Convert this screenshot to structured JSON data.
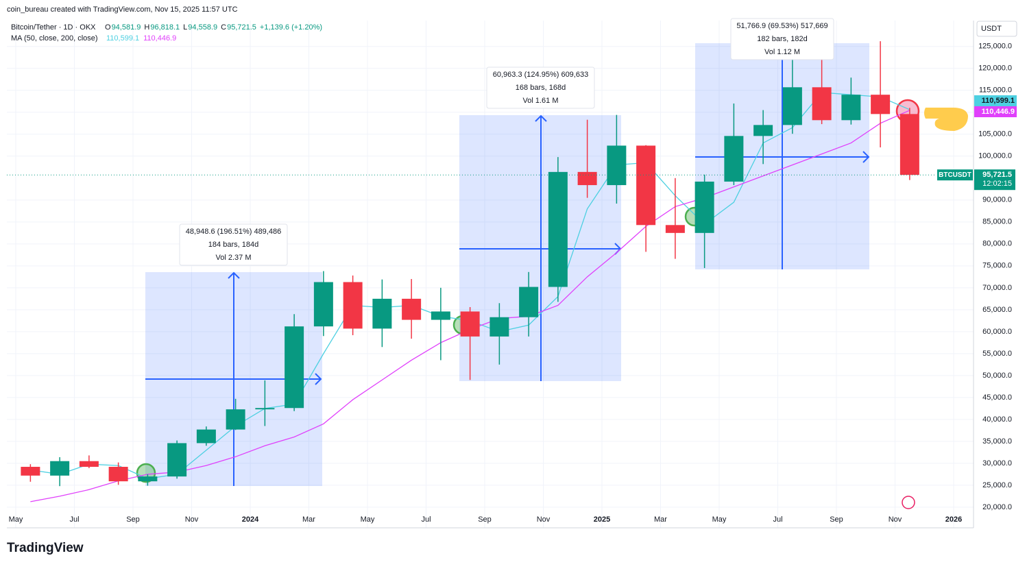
{
  "header": {
    "credit": "coin_bureau created with TradingView.com, Nov 15, 2025 11:57 UTC",
    "symbol": "Bitcoin/Tether · 1D · OKX",
    "ohlc": [
      {
        "key": "O",
        "value": "94,581.9"
      },
      {
        "key": "H",
        "value": "96,818.1"
      },
      {
        "key": "L",
        "value": "94,558.9"
      },
      {
        "key": "C",
        "value": "95,721.5"
      }
    ],
    "change": "+1,139.6 (+1.20%)",
    "ma_title": "MA (50, close, 200, close)"
  },
  "chart_data": {
    "type": "candlestick",
    "categories": [
      "May",
      null,
      "Jul",
      null,
      "Sep",
      null,
      "Nov",
      null,
      "2024",
      null,
      "Mar",
      null,
      "May",
      null,
      "Jul",
      null,
      "Sep",
      null,
      "Nov",
      null,
      "2025",
      null,
      "Mar",
      null,
      "May",
      null,
      "Jul",
      null,
      "Sep",
      null,
      "Nov",
      null,
      "2026"
    ],
    "open": [
      29200,
      27200,
      30500,
      29200,
      25900,
      27000,
      34600,
      37700,
      42300,
      42600,
      61200,
      71300,
      60700,
      67500,
      62700,
      64600,
      58900,
      63300,
      70200,
      96400,
      93400,
      102400,
      84300,
      82500,
      94200,
      104600,
      107100,
      115700,
      108200,
      114000,
      109600,
      null,
      null
    ],
    "high": [
      29800,
      31400,
      31800,
      30200,
      27500,
      35200,
      38400,
      44700,
      48900,
      64000,
      73800,
      72800,
      71900,
      72000,
      70000,
      65600,
      66500,
      73600,
      99800,
      108300,
      109400,
      102500,
      95000,
      95800,
      112000,
      110500,
      123200,
      124500,
      117900,
      126200,
      111000,
      null,
      null
    ],
    "low": [
      25800,
      24800,
      28900,
      25100,
      24900,
      26500,
      34000,
      37600,
      38500,
      41900,
      59000,
      59200,
      56500,
      58400,
      53500,
      49000,
      52500,
      58900,
      66800,
      90500,
      89200,
      78200,
      76600,
      74500,
      93400,
      98200,
      105100,
      107300,
      107200,
      102000,
      94558,
      null,
      null
    ],
    "close": [
      27200,
      30500,
      29200,
      25900,
      27000,
      34600,
      37700,
      42300,
      42600,
      61200,
      71300,
      60700,
      67500,
      62700,
      64600,
      58900,
      63300,
      70200,
      96400,
      93400,
      102400,
      84300,
      82500,
      94200,
      104600,
      107100,
      115700,
      108200,
      114000,
      109600,
      95721.5,
      null,
      null
    ],
    "up_color": "#089981",
    "down_color": "#f23645",
    "series": [
      {
        "color": "#4dd0e1",
        "value_label": "110,599.1",
        "values": [
          28500,
          27500,
          29800,
          29500,
          26500,
          27500,
          33000,
          38500,
          42500,
          43500,
          55000,
          66000,
          65500,
          66000,
          63500,
          62500,
          60000,
          61500,
          68000,
          88000,
          98000,
          98500,
          91000,
          84500,
          89500,
          103000,
          106500,
          114500,
          114000,
          113500,
          110599.1,
          null,
          null
        ]
      },
      {
        "color": "#e040fb",
        "value_label": "110,446.9",
        "values": [
          21250,
          22500,
          24000,
          26000,
          27500,
          28000,
          29500,
          31500,
          34000,
          36000,
          39000,
          44500,
          49000,
          53500,
          57500,
          60500,
          63000,
          63500,
          66000,
          72500,
          78000,
          84000,
          88500,
          90500,
          93000,
          95500,
          98000,
          100500,
          103000,
          107500,
          110446.9,
          null,
          null
        ]
      }
    ],
    "ylim": [
      15300,
      130900
    ],
    "yticks": [
      {
        "value": 20000,
        "label": "20,000.0"
      },
      {
        "value": 25000,
        "label": "25,000.0"
      },
      {
        "value": 30000,
        "label": "30,000.0"
      },
      {
        "value": 35000,
        "label": "35,000.0"
      },
      {
        "value": 40000,
        "label": "40,000.0"
      },
      {
        "value": 45000,
        "label": "45,000.0"
      },
      {
        "value": 50000,
        "label": "50,000.0"
      },
      {
        "value": 55000,
        "label": "55,000.0"
      },
      {
        "value": 60000,
        "label": "60,000.0"
      },
      {
        "value": 65000,
        "label": "65,000.0"
      },
      {
        "value": 70000,
        "label": "70,000.0"
      },
      {
        "value": 75000,
        "label": "75,000.0"
      },
      {
        "value": 80000,
        "label": "80,000.0"
      },
      {
        "value": 85000,
        "label": "85,000.0"
      },
      {
        "value": 90000,
        "label": "90,000.0"
      },
      {
        "value": 100000,
        "label": "100,000.0"
      },
      {
        "value": 105000,
        "label": "105,000.0"
      },
      {
        "value": 110000,
        "label": "110,000.0"
      },
      {
        "value": 115000,
        "label": "115,000.0"
      },
      {
        "value": 120000,
        "label": "120,000.0"
      },
      {
        "value": 125000,
        "label": "125,000.0"
      }
    ],
    "currency": "USDT",
    "price_line": {
      "symbol": "BTCUSDT",
      "value": 95721.5,
      "label": "95,721.5",
      "countdown": "12:02:15"
    },
    "measurements": [
      {
        "lines": [
          "48,948.6 (196.51%) 489,486",
          "184 bars, 184d",
          "Vol 2.37 M"
        ]
      },
      {
        "lines": [
          "60,963.3 (124.95%) 609,633",
          "168 bars, 168d",
          "Vol 1.61 M"
        ]
      },
      {
        "lines": [
          "51,766.9 (69.53%) 517,669",
          "182 bars, 182d",
          "Vol 1.12 M"
        ]
      }
    ]
  },
  "footer": {
    "logo": "TradingView"
  }
}
